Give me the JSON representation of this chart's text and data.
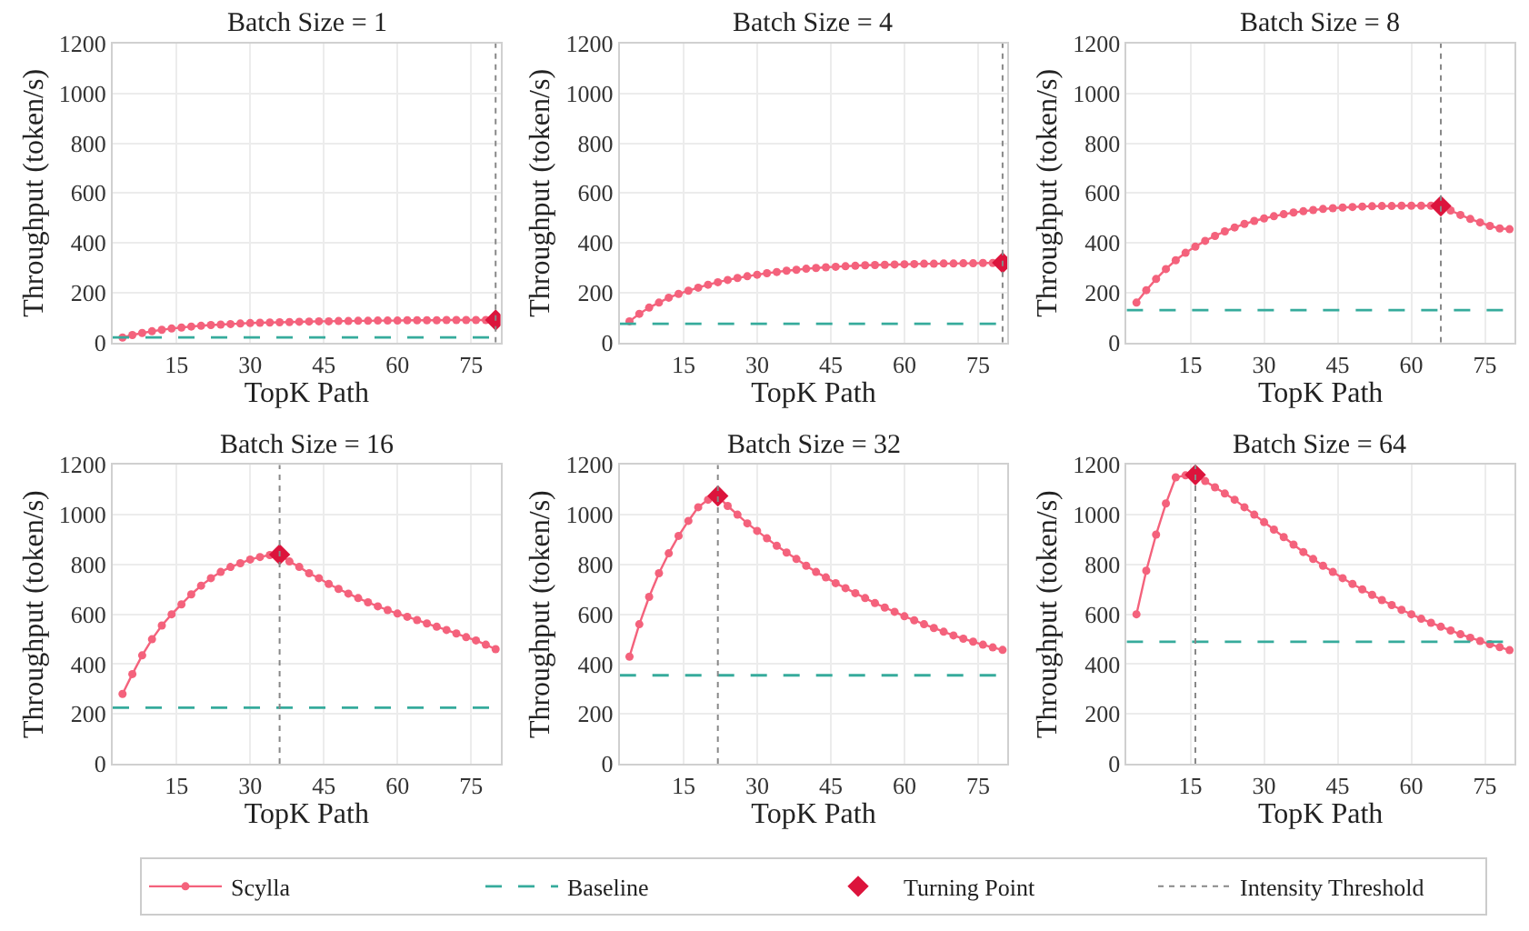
{
  "chart_data": [
    {
      "type": "line",
      "title": "Batch Size = 1",
      "xlabel": "TopK Path",
      "ylabel": "Throughput (token/s)",
      "xlim": [
        2,
        81
      ],
      "xticks": [
        15,
        30,
        45,
        60,
        75
      ],
      "ylim": [
        0,
        1200
      ],
      "yticks": [
        0,
        200,
        400,
        600,
        800,
        1000,
        1200
      ],
      "grid": true,
      "legend": "bottom",
      "x": [
        4,
        6,
        8,
        10,
        12,
        14,
        16,
        18,
        20,
        22,
        24,
        26,
        28,
        30,
        32,
        34,
        36,
        38,
        40,
        42,
        44,
        46,
        48,
        50,
        52,
        54,
        56,
        58,
        60,
        62,
        64,
        66,
        68,
        70,
        72,
        74,
        76,
        78,
        80
      ],
      "series": [
        {
          "name": "Scylla",
          "color": "#f4627c",
          "marker": "circle",
          "line_style": "solid",
          "values": [
            20,
            30,
            38,
            45,
            51,
            56,
            60,
            64,
            67,
            70,
            72,
            74,
            76,
            78,
            79,
            80,
            81,
            82,
            83,
            84,
            85,
            85,
            86,
            86,
            87,
            87,
            88,
            88,
            88,
            89,
            89,
            89,
            89,
            90,
            90,
            90,
            90,
            90,
            90
          ]
        },
        {
          "name": "Turning Point",
          "type": "scatter",
          "color": "#dc143c",
          "marker": "diamond",
          "x": [
            80
          ],
          "values": [
            90
          ]
        }
      ],
      "ref_lines": [
        {
          "axis": "y",
          "value": 20,
          "label": "Baseline",
          "color": "#36ab9c",
          "line_style": "dashed"
        },
        {
          "axis": "x",
          "value": 80,
          "label": "Intensity Threshold",
          "color": "#888888",
          "line_style": "dotted"
        }
      ]
    },
    {
      "type": "line",
      "title": "Batch Size = 4",
      "xlabel": "TopK Path",
      "ylabel": "Throughput (token/s)",
      "xlim": [
        2,
        81
      ],
      "xticks": [
        15,
        30,
        45,
        60,
        75
      ],
      "ylim": [
        0,
        1200
      ],
      "yticks": [
        0,
        200,
        400,
        600,
        800,
        1000,
        1200
      ],
      "grid": true,
      "x": [
        4,
        6,
        8,
        10,
        12,
        14,
        16,
        18,
        20,
        22,
        24,
        26,
        28,
        30,
        32,
        34,
        36,
        38,
        40,
        42,
        44,
        46,
        48,
        50,
        52,
        54,
        56,
        58,
        60,
        62,
        64,
        66,
        68,
        70,
        72,
        74,
        76,
        78,
        80
      ],
      "series": [
        {
          "color": "#f4627c",
          "marker": "circle",
          "line_style": "solid",
          "values": [
            85,
            115,
            140,
            160,
            180,
            195,
            208,
            220,
            232,
            242,
            251,
            259,
            266,
            272,
            278,
            283,
            288,
            292,
            296,
            299,
            302,
            304,
            306,
            308,
            310,
            311,
            312,
            313,
            314,
            315,
            316,
            316,
            317,
            317,
            318,
            318,
            319,
            319,
            320
          ]
        },
        {
          "type": "scatter",
          "color": "#dc143c",
          "marker": "diamond",
          "x": [
            80
          ],
          "values": [
            320
          ]
        }
      ],
      "ref_lines": [
        {
          "axis": "y",
          "value": 75,
          "color": "#36ab9c",
          "line_style": "dashed"
        },
        {
          "axis": "x",
          "value": 80,
          "color": "#888888",
          "line_style": "dotted"
        }
      ]
    },
    {
      "type": "line",
      "title": "Batch Size = 8",
      "xlabel": "TopK Path",
      "ylabel": "Throughput (token/s)",
      "xlim": [
        2,
        81
      ],
      "xticks": [
        15,
        30,
        45,
        60,
        75
      ],
      "ylim": [
        0,
        1200
      ],
      "yticks": [
        0,
        200,
        400,
        600,
        800,
        1000,
        1200
      ],
      "grid": true,
      "x": [
        4,
        6,
        8,
        10,
        12,
        14,
        16,
        18,
        20,
        22,
        24,
        26,
        28,
        30,
        32,
        34,
        36,
        38,
        40,
        42,
        44,
        46,
        48,
        50,
        52,
        54,
        56,
        58,
        60,
        62,
        64,
        66,
        68,
        70,
        72,
        74,
        76,
        78,
        80
      ],
      "series": [
        {
          "color": "#f4627c",
          "marker": "circle",
          "line_style": "solid",
          "values": [
            160,
            210,
            255,
            295,
            330,
            360,
            385,
            408,
            428,
            446,
            462,
            476,
            488,
            498,
            507,
            515,
            522,
            527,
            532,
            536,
            539,
            542,
            544,
            546,
            547,
            548,
            548,
            549,
            549,
            549,
            549,
            548,
            530,
            512,
            496,
            482,
            468,
            458,
            455
          ]
        },
        {
          "type": "scatter",
          "color": "#dc143c",
          "marker": "diamond",
          "x": [
            66
          ],
          "values": [
            548
          ]
        }
      ],
      "ref_lines": [
        {
          "axis": "y",
          "value": 130,
          "color": "#36ab9c",
          "line_style": "dashed"
        },
        {
          "axis": "x",
          "value": 66,
          "color": "#888888",
          "line_style": "dotted"
        }
      ]
    },
    {
      "type": "line",
      "title": "Batch Size = 16",
      "xlabel": "TopK Path",
      "ylabel": "Throughput (token/s)",
      "xlim": [
        2,
        81
      ],
      "xticks": [
        15,
        30,
        45,
        60,
        75
      ],
      "ylim": [
        0,
        1200
      ],
      "yticks": [
        0,
        200,
        400,
        600,
        800,
        1000,
        1200
      ],
      "grid": true,
      "x": [
        4,
        6,
        8,
        10,
        12,
        14,
        16,
        18,
        20,
        22,
        24,
        26,
        28,
        30,
        32,
        34,
        36,
        38,
        40,
        42,
        44,
        46,
        48,
        50,
        52,
        54,
        56,
        58,
        60,
        62,
        64,
        66,
        68,
        70,
        72,
        74,
        76,
        78,
        80
      ],
      "series": [
        {
          "color": "#f4627c",
          "marker": "circle",
          "line_style": "solid",
          "values": [
            280,
            360,
            435,
            500,
            555,
            600,
            640,
            680,
            715,
            745,
            770,
            790,
            805,
            820,
            830,
            838,
            840,
            812,
            790,
            765,
            745,
            722,
            702,
            683,
            665,
            648,
            632,
            617,
            603,
            590,
            577,
            563,
            550,
            537,
            523,
            508,
            495,
            478,
            460
          ]
        },
        {
          "type": "scatter",
          "color": "#dc143c",
          "marker": "diamond",
          "x": [
            36
          ],
          "values": [
            840
          ]
        }
      ],
      "ref_lines": [
        {
          "axis": "y",
          "value": 225,
          "color": "#36ab9c",
          "line_style": "dashed"
        },
        {
          "axis": "x",
          "value": 36,
          "color": "#888888",
          "line_style": "dotted"
        }
      ]
    },
    {
      "type": "line",
      "title": "Batch Size = 32",
      "xlabel": "TopK Path",
      "ylabel": "Throughput (token/s)",
      "xlim": [
        2,
        81
      ],
      "xticks": [
        15,
        30,
        45,
        60,
        75
      ],
      "ylim": [
        0,
        1200
      ],
      "yticks": [
        0,
        200,
        400,
        600,
        800,
        1000,
        1200
      ],
      "grid": true,
      "x": [
        4,
        6,
        8,
        10,
        12,
        14,
        16,
        18,
        20,
        22,
        24,
        26,
        28,
        30,
        32,
        34,
        36,
        38,
        40,
        42,
        44,
        46,
        48,
        50,
        52,
        54,
        56,
        58,
        60,
        62,
        64,
        66,
        68,
        70,
        72,
        74,
        76,
        78,
        80
      ],
      "series": [
        {
          "color": "#f4627c",
          "marker": "circle",
          "line_style": "solid",
          "values": [
            430,
            560,
            670,
            765,
            845,
            915,
            975,
            1030,
            1060,
            1075,
            1035,
            1000,
            965,
            935,
            905,
            875,
            848,
            822,
            795,
            770,
            748,
            725,
            705,
            685,
            665,
            645,
            627,
            610,
            592,
            576,
            560,
            545,
            530,
            515,
            502,
            490,
            478,
            467,
            457
          ]
        },
        {
          "type": "scatter",
          "color": "#dc143c",
          "marker": "diamond",
          "x": [
            22
          ],
          "values": [
            1075
          ]
        }
      ],
      "ref_lines": [
        {
          "axis": "y",
          "value": 355,
          "color": "#36ab9c",
          "line_style": "dashed"
        },
        {
          "axis": "x",
          "value": 22,
          "color": "#888888",
          "line_style": "dotted"
        }
      ]
    },
    {
      "type": "line",
      "title": "Batch Size = 64",
      "xlabel": "TopK Path",
      "ylabel": "Throughput (token/s)",
      "xlim": [
        2,
        81
      ],
      "xticks": [
        15,
        30,
        45,
        60,
        75
      ],
      "ylim": [
        0,
        1200
      ],
      "yticks": [
        0,
        200,
        400,
        600,
        800,
        1000,
        1200
      ],
      "grid": true,
      "x": [
        4,
        6,
        8,
        10,
        12,
        14,
        16,
        18,
        20,
        22,
        24,
        26,
        28,
        30,
        32,
        34,
        36,
        38,
        40,
        42,
        44,
        46,
        48,
        50,
        52,
        54,
        56,
        58,
        60,
        62,
        64,
        66,
        68,
        70,
        72,
        74,
        76,
        78,
        80
      ],
      "series": [
        {
          "color": "#f4627c",
          "marker": "circle",
          "line_style": "solid",
          "values": [
            600,
            775,
            920,
            1045,
            1150,
            1158,
            1160,
            1135,
            1110,
            1085,
            1060,
            1030,
            1000,
            970,
            940,
            910,
            880,
            850,
            822,
            795,
            770,
            745,
            722,
            700,
            678,
            657,
            637,
            618,
            600,
            582,
            566,
            550,
            535,
            520,
            506,
            493,
            480,
            468,
            456
          ]
        },
        {
          "type": "scatter",
          "color": "#dc143c",
          "marker": "diamond",
          "x": [
            16
          ],
          "values": [
            1160
          ]
        }
      ],
      "ref_lines": [
        {
          "axis": "y",
          "value": 490,
          "color": "#36ab9c",
          "line_style": "dashed"
        },
        {
          "axis": "x",
          "value": 16,
          "color": "#888888",
          "line_style": "dotted"
        }
      ]
    }
  ]
}
